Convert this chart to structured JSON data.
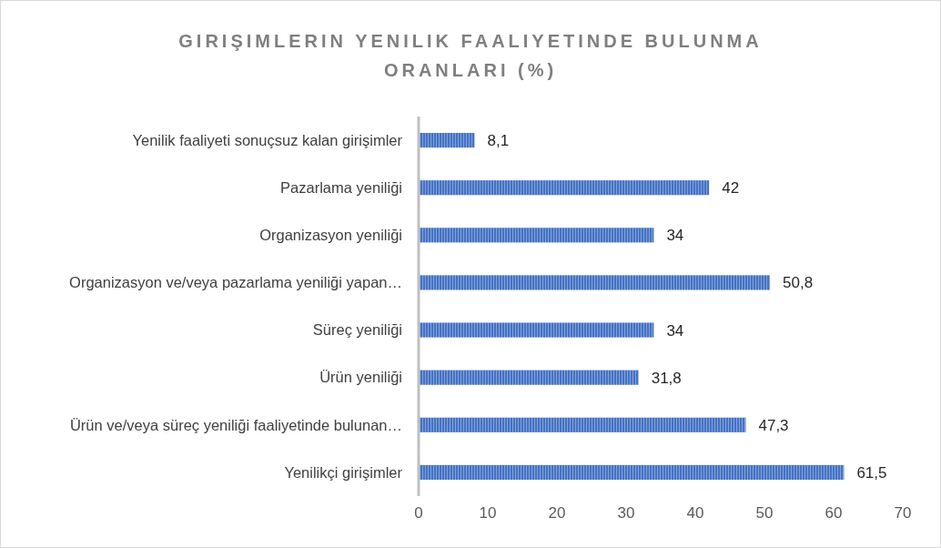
{
  "chart_data": {
    "type": "bar",
    "orientation": "horizontal",
    "title": "GIRIŞIMLERIN YENILIK FAALIYETINDE BULUNMA ORANLARI (%)",
    "categories": [
      "Yenilik faaliyeti sonuçsuz kalan girişimler",
      "Pazarlama yeniliği",
      "Organizasyon yeniliği",
      "Organizasyon ve/veya pazarlama yeniliği yapan…",
      "Süreç yeniliği",
      "Ürün yeniliği",
      "Ürün ve/veya süreç yeniliği faaliyetinde bulunan…",
      "Yenilikçi girişimler"
    ],
    "values": [
      8.1,
      42,
      34,
      50.8,
      34,
      31.8,
      47.3,
      61.5
    ],
    "value_labels": [
      "8,1",
      "42",
      "34",
      "50,8",
      "34",
      "31,8",
      "47,3",
      "61,5"
    ],
    "color": "#4472c4",
    "xlim": [
      0,
      70
    ],
    "xticks": [
      0,
      10,
      20,
      30,
      40,
      50,
      60,
      70
    ]
  }
}
